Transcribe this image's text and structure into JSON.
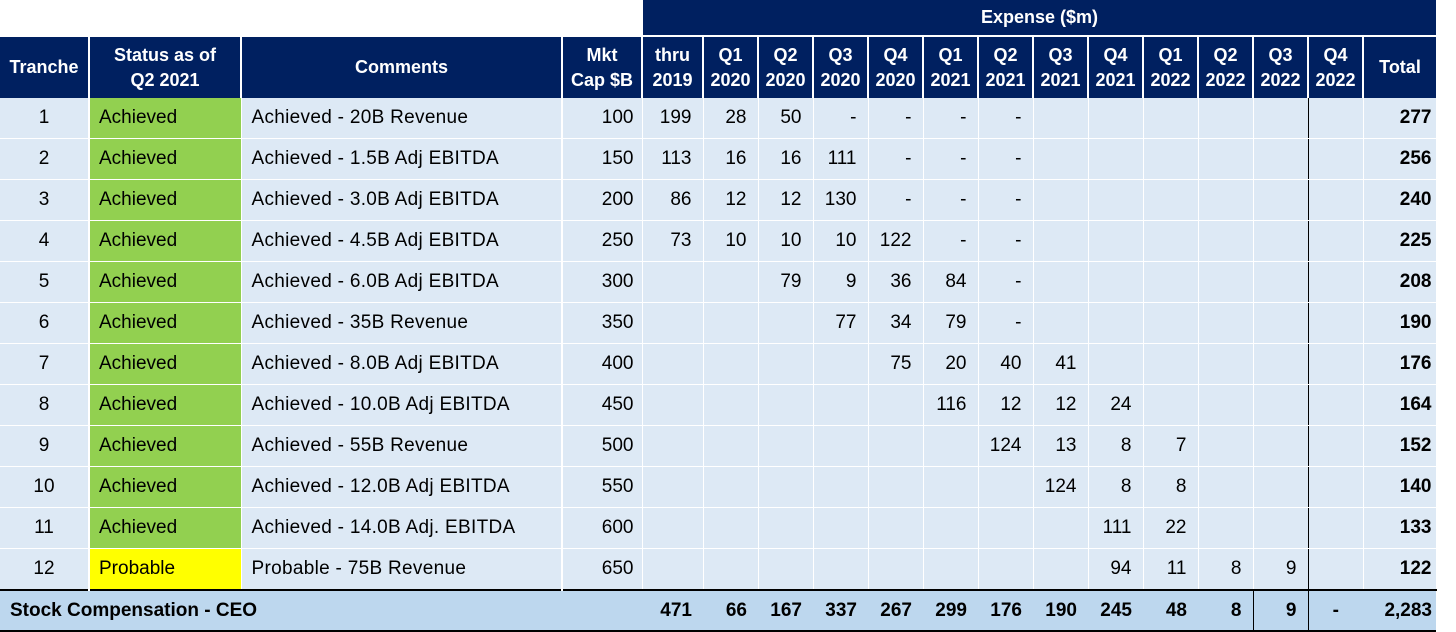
{
  "header": {
    "expense_group": "Expense ($m)",
    "tranche": "Tranche",
    "status": "Status as of\nQ2 2021",
    "comments": "Comments",
    "mkt_cap": "Mkt\nCap $B",
    "periods": [
      "thru\n2019",
      "Q1\n2020",
      "Q2\n2020",
      "Q3\n2020",
      "Q4\n2020",
      "Q1\n2021",
      "Q2\n2021",
      "Q3\n2021",
      "Q4\n2021",
      "Q1\n2022",
      "Q2\n2022",
      "Q3\n2022",
      "Q4\n2022"
    ],
    "total": "Total"
  },
  "rows": [
    {
      "tranche": "1",
      "status": "Achieved",
      "comment": "Achieved - 20B Revenue",
      "mkt_cap": "100",
      "values": [
        "199",
        "28",
        "50",
        "-",
        "-",
        "-",
        "-",
        "",
        "",
        "",
        "",
        "",
        ""
      ],
      "total": "277"
    },
    {
      "tranche": "2",
      "status": "Achieved",
      "comment": "Achieved - 1.5B Adj EBITDA",
      "mkt_cap": "150",
      "values": [
        "113",
        "16",
        "16",
        "111",
        "-",
        "-",
        "-",
        "",
        "",
        "",
        "",
        "",
        ""
      ],
      "total": "256"
    },
    {
      "tranche": "3",
      "status": "Achieved",
      "comment": "Achieved - 3.0B Adj EBITDA",
      "mkt_cap": "200",
      "values": [
        "86",
        "12",
        "12",
        "130",
        "-",
        "-",
        "-",
        "",
        "",
        "",
        "",
        "",
        ""
      ],
      "total": "240"
    },
    {
      "tranche": "4",
      "status": "Achieved",
      "comment": "Achieved - 4.5B Adj EBITDA",
      "mkt_cap": "250",
      "values": [
        "73",
        "10",
        "10",
        "10",
        "122",
        "-",
        "-",
        "",
        "",
        "",
        "",
        "",
        ""
      ],
      "total": "225"
    },
    {
      "tranche": "5",
      "status": "Achieved",
      "comment": "Achieved - 6.0B Adj EBITDA",
      "mkt_cap": "300",
      "values": [
        "",
        "",
        "79",
        "9",
        "36",
        "84",
        "-",
        "",
        "",
        "",
        "",
        "",
        ""
      ],
      "total": "208"
    },
    {
      "tranche": "6",
      "status": "Achieved",
      "comment": "Achieved - 35B Revenue",
      "mkt_cap": "350",
      "values": [
        "",
        "",
        "",
        "77",
        "34",
        "79",
        "-",
        "",
        "",
        "",
        "",
        "",
        ""
      ],
      "total": "190"
    },
    {
      "tranche": "7",
      "status": "Achieved",
      "comment": "Achieved - 8.0B Adj EBITDA",
      "mkt_cap": "400",
      "values": [
        "",
        "",
        "",
        "",
        "75",
        "20",
        "40",
        "41",
        "",
        "",
        "",
        "",
        ""
      ],
      "total": "176"
    },
    {
      "tranche": "8",
      "status": "Achieved",
      "comment": "Achieved - 10.0B Adj EBITDA",
      "mkt_cap": "450",
      "values": [
        "",
        "",
        "",
        "",
        "",
        "116",
        "12",
        "12",
        "24",
        "",
        "",
        "",
        ""
      ],
      "total": "164"
    },
    {
      "tranche": "9",
      "status": "Achieved",
      "comment": "Achieved - 55B Revenue",
      "mkt_cap": "500",
      "values": [
        "",
        "",
        "",
        "",
        "",
        "",
        "124",
        "13",
        "8",
        "7",
        "",
        "",
        ""
      ],
      "total": "152"
    },
    {
      "tranche": "10",
      "status": "Achieved",
      "comment": "Achieved - 12.0B Adj EBITDA",
      "mkt_cap": "550",
      "values": [
        "",
        "",
        "",
        "",
        "",
        "",
        "",
        "124",
        "8",
        "8",
        "",
        "",
        ""
      ],
      "total": "140"
    },
    {
      "tranche": "11",
      "status": "Achieved",
      "comment": "Achieved - 14.0B Adj. EBITDA",
      "mkt_cap": "600",
      "values": [
        "",
        "",
        "",
        "",
        "",
        "",
        "",
        "",
        "111",
        "22",
        "",
        "",
        ""
      ],
      "total": "133"
    },
    {
      "tranche": "12",
      "status": "Probable",
      "comment": "Probable - 75B Revenue",
      "mkt_cap": "650",
      "values": [
        "",
        "",
        "",
        "",
        "",
        "",
        "",
        "",
        "94",
        "11",
        "8",
        "9",
        ""
      ],
      "total": "122"
    }
  ],
  "summary": {
    "label": "Stock Compensation - CEO",
    "values": [
      "471",
      "66",
      "167",
      "337",
      "267",
      "299",
      "176",
      "190",
      "245",
      "48",
      "8",
      "9",
      "-"
    ],
    "total": "2,283"
  },
  "colors": {
    "header_bg": "#002060",
    "row_bg": "#dde9f5",
    "achieved": "#92d050",
    "probable": "#ffff00",
    "summary_bg": "#bdd7ee"
  }
}
